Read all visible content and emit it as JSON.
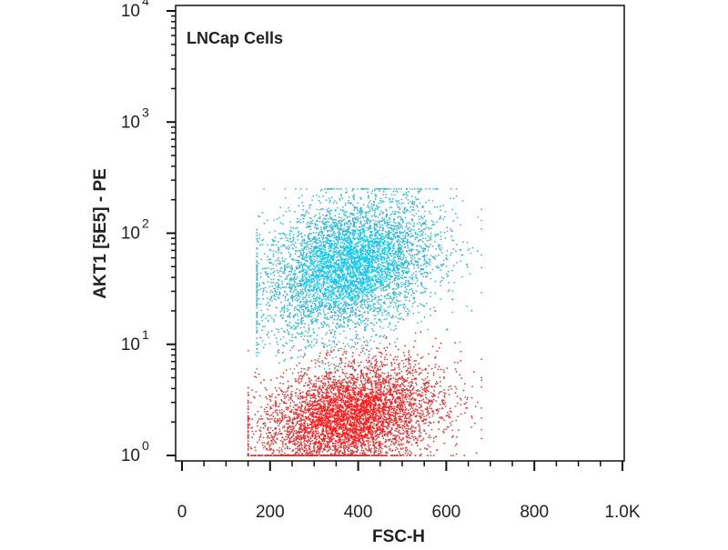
{
  "chart_data": {
    "type": "scatter",
    "title": "",
    "annotation": "LNCap Cells",
    "xlabel": "FSC-H",
    "ylabel": "AKT1 [5E5] - PE",
    "x_scale": "linear",
    "y_scale": "log",
    "xlim": [
      0,
      1000
    ],
    "ylim": [
      1,
      10000
    ],
    "x_ticks": [
      {
        "value": 0,
        "label": "0"
      },
      {
        "value": 200,
        "label": "200"
      },
      {
        "value": 400,
        "label": "400"
      },
      {
        "value": 600,
        "label": "600"
      },
      {
        "value": 800,
        "label": "800"
      },
      {
        "value": 1000,
        "label": "1.0K"
      }
    ],
    "y_ticks": [
      {
        "value": 1,
        "base": "10",
        "exp": "0"
      },
      {
        "value": 10,
        "base": "10",
        "exp": "1"
      },
      {
        "value": 100,
        "base": "10",
        "exp": "2"
      },
      {
        "value": 1000,
        "base": "10",
        "exp": "3"
      },
      {
        "value": 10000,
        "base": "10",
        "exp": "4"
      }
    ],
    "grid": false,
    "legend": "none",
    "series": [
      {
        "color": "#2bb6d4",
        "core_color": "#11c6ee",
        "points": 5200,
        "center": {
          "x": 380,
          "y": 50
        },
        "x_range": [
          170,
          680
        ],
        "y_range": [
          6,
          250
        ]
      },
      {
        "color": "#e03030",
        "core_color": "#ff1a1a",
        "points": 5200,
        "center": {
          "x": 380,
          "y": 2.2
        },
        "x_range": [
          150,
          680
        ],
        "y_range": [
          1,
          20
        ]
      }
    ]
  }
}
